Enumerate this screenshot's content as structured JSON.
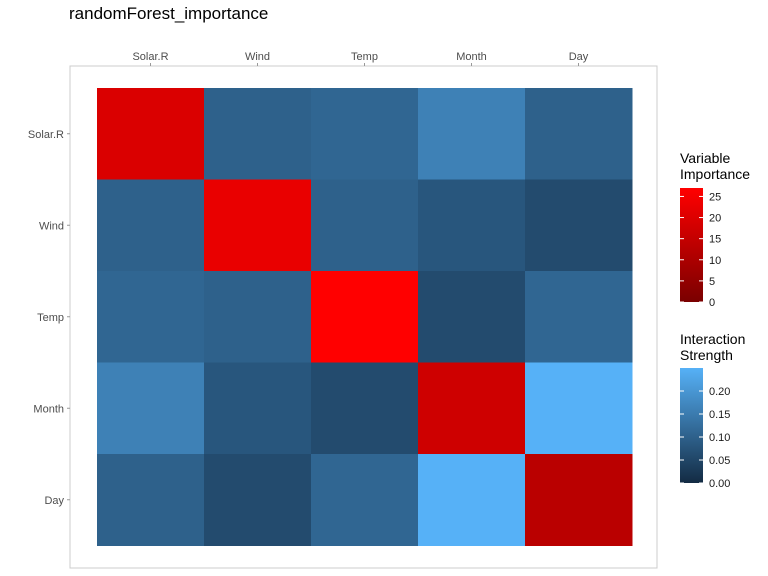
{
  "chart_data": {
    "type": "heatmap",
    "title": "randomForest_importance",
    "variables": [
      "Solar.R",
      "Wind",
      "Temp",
      "Month",
      "Day"
    ],
    "diagonal_importance": {
      "Solar.R": 19.5,
      "Wind": 22.5,
      "Temp": 27.0,
      "Month": 17.0,
      "Day": 13.0
    },
    "interaction_strength": [
      [
        null,
        0.1,
        0.11,
        0.16,
        0.1
      ],
      [
        0.1,
        null,
        0.1,
        0.08,
        0.06
      ],
      [
        0.11,
        0.1,
        null,
        0.06,
        0.11
      ],
      [
        0.16,
        0.08,
        0.06,
        null,
        0.25
      ],
      [
        0.1,
        0.06,
        0.11,
        0.25,
        null
      ]
    ],
    "importance_legend": {
      "title_lines": [
        "Variable",
        "Importance"
      ],
      "ticks": [
        0,
        5,
        10,
        15,
        20,
        25
      ],
      "range": [
        0,
        27
      ],
      "colors": [
        "#7a0000",
        "#ff0000"
      ]
    },
    "interaction_legend": {
      "title_lines": [
        "Interaction",
        "Strength"
      ],
      "ticks": [
        "0.00",
        "0.05",
        "0.10",
        "0.15",
        "0.20"
      ],
      "range": [
        0,
        0.25
      ],
      "colors": [
        "#132b43",
        "#56b1f7"
      ]
    },
    "grid": false
  }
}
